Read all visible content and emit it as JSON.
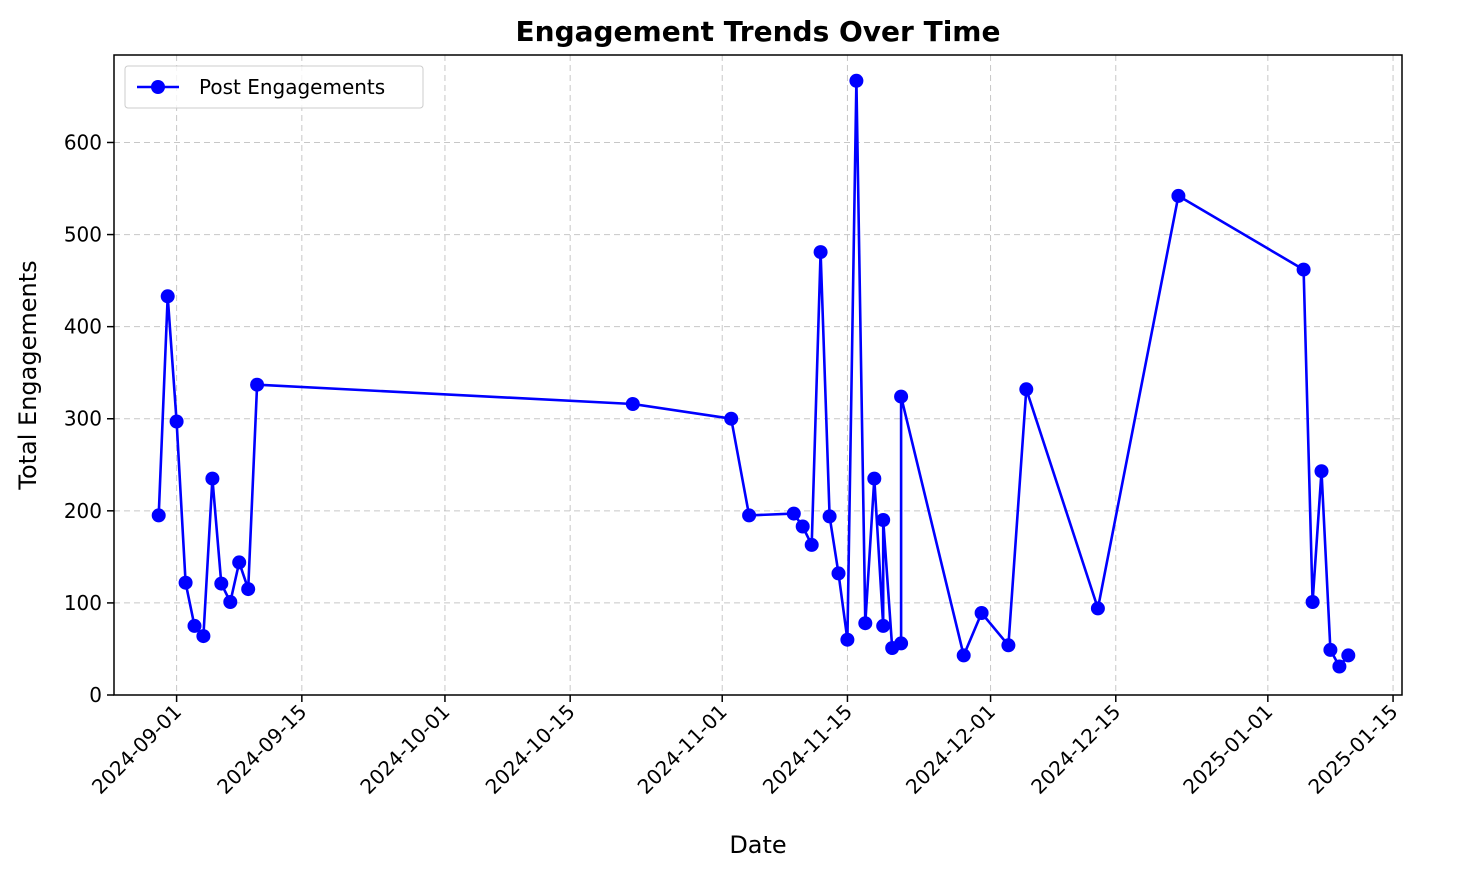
{
  "chart_data": {
    "type": "line",
    "title": "Engagement Trends Over Time",
    "xlabel": "Date",
    "ylabel": "Total Engagements",
    "xlim": [
      "2024-08-25",
      "2025-01-16"
    ],
    "ylim": [
      0,
      695
    ],
    "grid": true,
    "legend_position": "top-left",
    "x_ticks": [
      "2024-09-01",
      "2024-09-15",
      "2024-10-01",
      "2024-10-15",
      "2024-11-01",
      "2024-11-15",
      "2024-12-01",
      "2024-12-15",
      "2025-01-01",
      "2025-01-15"
    ],
    "y_ticks": [
      "0",
      "100",
      "200",
      "300",
      "400",
      "500",
      "600"
    ],
    "series": [
      {
        "name": "Post Engagements",
        "color": "#0000ff",
        "marker": "circle",
        "x": [
          "2024-08-30",
          "2024-08-31",
          "2024-09-01",
          "2024-09-02",
          "2024-09-03",
          "2024-09-04",
          "2024-09-05",
          "2024-09-06",
          "2024-09-07",
          "2024-09-08",
          "2024-09-09",
          "2024-09-10",
          "2024-10-22",
          "2024-11-02",
          "2024-11-04",
          "2024-11-09",
          "2024-11-10",
          "2024-11-11",
          "2024-11-12",
          "2024-11-13",
          "2024-11-14",
          "2024-11-15",
          "2024-11-16",
          "2024-11-17",
          "2024-11-18",
          "2024-11-19",
          "2024-11-19",
          "2024-11-20",
          "2024-11-21",
          "2024-11-21",
          "2024-11-28",
          "2024-11-30",
          "2024-12-03",
          "2024-12-05",
          "2024-12-13",
          "2024-12-22",
          "2025-01-05",
          "2025-01-06",
          "2025-01-07",
          "2025-01-08",
          "2025-01-09",
          "2025-01-10"
        ],
        "y": [
          195,
          433,
          297,
          122,
          75,
          64,
          235,
          121,
          101,
          144,
          115,
          337,
          316,
          300,
          195,
          197,
          183,
          163,
          481,
          194,
          132,
          60,
          667,
          78,
          235,
          75,
          190,
          51,
          56,
          324,
          43,
          89,
          54,
          332,
          94,
          542,
          462,
          101,
          243,
          49,
          31,
          43
        ]
      }
    ]
  }
}
